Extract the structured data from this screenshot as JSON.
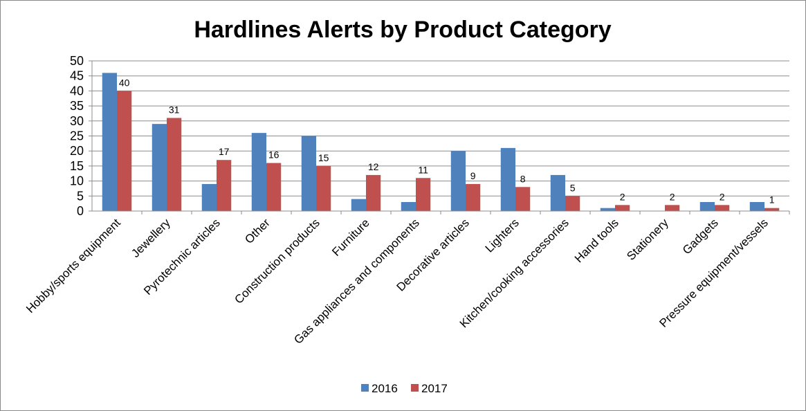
{
  "chart_data": {
    "type": "bar",
    "title": "Hardlines Alerts by Product Category",
    "xlabel": "",
    "ylabel": "",
    "ylim": [
      0,
      50
    ],
    "yticks": [
      "0",
      "5",
      "10",
      "15",
      "20",
      "25",
      "30",
      "35",
      "40",
      "45",
      "50"
    ],
    "grid": true,
    "legend": "bottom",
    "categories": [
      "Hobby/sports equipment",
      "Jewellery",
      "Pyrotechnic articles",
      "Other",
      "Construction products",
      "Furniture",
      "Gas appliances and components",
      "Decorative articles",
      "Lighters",
      "Kitchen/cooking accessories",
      "Hand tools",
      "Stationery",
      "Gadgets",
      "Pressure equipment/vessels"
    ],
    "series": [
      {
        "name": "2016",
        "color": "#4F81BD",
        "values": [
          46,
          29,
          9,
          26,
          25,
          4,
          3,
          20,
          21,
          12,
          1,
          0,
          3,
          3
        ]
      },
      {
        "name": "2017",
        "color": "#C0504D",
        "values": [
          40,
          31,
          17,
          16,
          15,
          12,
          11,
          9,
          8,
          5,
          2,
          2,
          2,
          1
        ],
        "data_labels": [
          "40",
          "31",
          "17",
          "16",
          "15",
          "12",
          "11",
          "9",
          "8",
          "5",
          "2",
          "2",
          "2",
          "1"
        ]
      }
    ]
  }
}
